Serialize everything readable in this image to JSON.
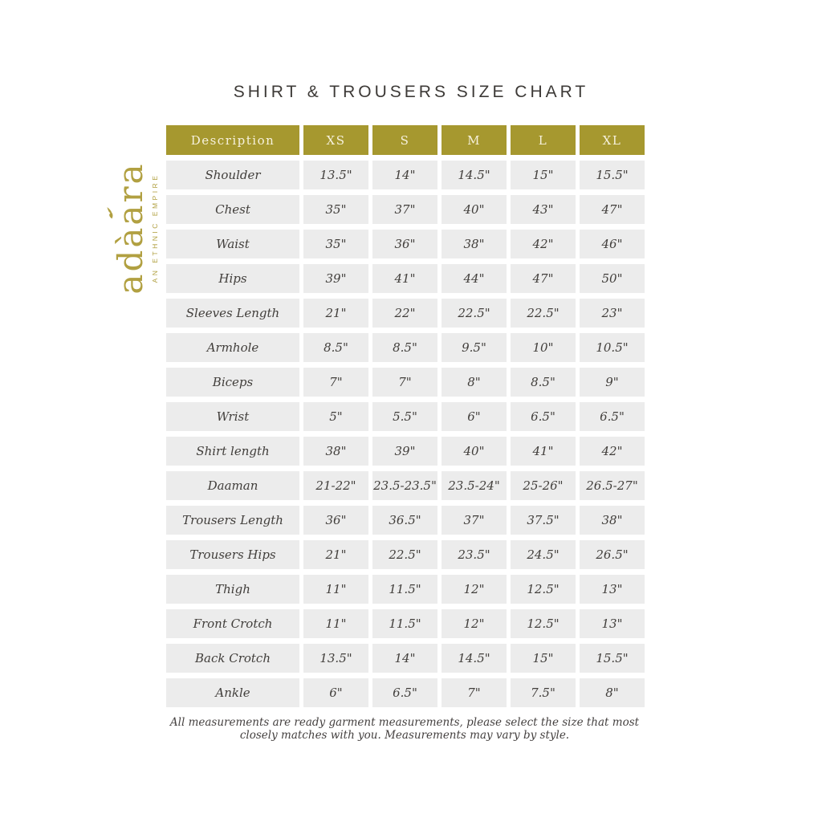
{
  "brand": {
    "name": "adàara",
    "tagline": "AN ETHNIC EMPIRE",
    "gold": "#b1a041"
  },
  "title": "SHIRT & TROUSERS SIZE CHART",
  "table": {
    "columns": [
      "Description",
      "XS",
      "S",
      "M",
      "L",
      "XL"
    ],
    "rows": [
      {
        "label": "Shoulder",
        "values": [
          "13.5\"",
          "14\"",
          "14.5\"",
          "15\"",
          "15.5\""
        ]
      },
      {
        "label": "Chest",
        "values": [
          "35\"",
          "37\"",
          "40\"",
          "43\"",
          "47\""
        ]
      },
      {
        "label": "Waist",
        "values": [
          "35\"",
          "36\"",
          "38\"",
          "42\"",
          "46\""
        ]
      },
      {
        "label": "Hips",
        "values": [
          "39\"",
          "41\"",
          "44\"",
          "47\"",
          "50\""
        ]
      },
      {
        "label": "Sleeves Length",
        "values": [
          "21\"",
          "22\"",
          "22.5\"",
          "22.5\"",
          "23\""
        ]
      },
      {
        "label": "Armhole",
        "values": [
          "8.5\"",
          "8.5\"",
          "9.5\"",
          "10\"",
          "10.5\""
        ]
      },
      {
        "label": "Biceps",
        "values": [
          "7\"",
          "7\"",
          "8\"",
          "8.5\"",
          "9\""
        ]
      },
      {
        "label": "Wrist",
        "values": [
          "5\"",
          "5.5\"",
          "6\"",
          "6.5\"",
          "6.5\""
        ]
      },
      {
        "label": "Shirt length",
        "values": [
          "38\"",
          "39\"",
          "40\"",
          "41\"",
          "42\""
        ]
      },
      {
        "label": "Daaman",
        "values": [
          "21-22\"",
          "23.5-23.5\"",
          "23.5-24\"",
          "25-26\"",
          "26.5-27\""
        ]
      },
      {
        "label": "Trousers Length",
        "values": [
          "36\"",
          "36.5\"",
          "37\"",
          "37.5\"",
          "38\""
        ]
      },
      {
        "label": "Trousers Hips",
        "values": [
          "21\"",
          "22.5\"",
          "23.5\"",
          "24.5\"",
          "26.5\""
        ]
      },
      {
        "label": "Thigh",
        "values": [
          "11\"",
          "11.5\"",
          "12\"",
          "12.5\"",
          "13\""
        ]
      },
      {
        "label": "Front Crotch",
        "values": [
          "11\"",
          "11.5\"",
          "12\"",
          "12.5\"",
          "13\""
        ]
      },
      {
        "label": "Back Crotch",
        "values": [
          "13.5\"",
          "14\"",
          "14.5\"",
          "15\"",
          "15.5\""
        ]
      },
      {
        "label": "Ankle",
        "values": [
          "6\"",
          "6.5\"",
          "7\"",
          "7.5\"",
          "8\""
        ]
      }
    ]
  },
  "footer": {
    "line1": "All measurements are ready garment measurements, please select the size that most",
    "line2": "closely matches with you. Measurements may vary by style."
  },
  "colors": {
    "header_bg": "#a6982f",
    "header_text": "#f6f1dd",
    "cell_bg": "#ececec",
    "cell_text": "#413e3b",
    "title_text": "#3d3a37"
  }
}
